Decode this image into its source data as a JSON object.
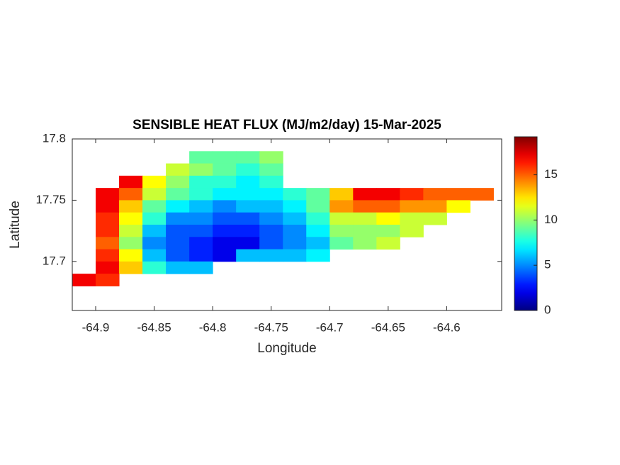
{
  "chart_data": {
    "type": "heatmap",
    "title": "SENSIBLE HEAT FLUX (MJ/m2/day) 15-Mar-2025",
    "x_label": "Longitude",
    "y_label": "Latitude",
    "xlim": [
      -64.92,
      -64.553
    ],
    "ylim": [
      17.66,
      17.8
    ],
    "xticks": [
      -64.9,
      -64.85,
      -64.8,
      -64.75,
      -64.7,
      -64.65,
      -64.6
    ],
    "yticks": [
      17.7,
      17.75,
      17.8
    ],
    "clim": [
      0,
      19.2
    ],
    "cticks": [
      0,
      5,
      10,
      15
    ],
    "colormap": "jet",
    "cell_width": 0.02,
    "cell_height": 0.01,
    "x": [
      -64.91,
      -64.89,
      -64.87,
      -64.85,
      -64.83,
      -64.81,
      -64.79,
      -64.77,
      -64.75,
      -64.73,
      -64.71,
      -64.69,
      -64.67,
      -64.65,
      -64.63,
      -64.61,
      -64.59,
      -64.57
    ],
    "y": [
      17.785,
      17.775,
      17.765,
      17.755,
      17.745,
      17.735,
      17.725,
      17.715,
      17.705,
      17.695,
      17.685
    ],
    "z": [
      [
        null,
        null,
        null,
        null,
        null,
        9,
        9,
        9,
        10,
        null,
        null,
        null,
        null,
        null,
        null,
        null,
        null,
        null
      ],
      [
        null,
        null,
        null,
        null,
        11,
        10,
        9,
        8,
        9,
        null,
        null,
        null,
        null,
        null,
        null,
        null,
        null,
        null
      ],
      [
        null,
        null,
        17,
        12,
        10,
        8,
        8,
        7,
        8,
        null,
        null,
        null,
        null,
        null,
        null,
        null,
        null,
        null
      ],
      [
        null,
        17,
        15,
        11,
        9,
        8,
        7,
        7,
        7,
        8,
        9,
        13,
        17,
        17,
        16,
        15,
        15,
        15
      ],
      [
        null,
        17,
        13,
        9,
        7,
        6,
        5,
        6,
        6,
        7,
        9,
        14,
        15,
        15,
        14,
        14,
        12,
        null
      ],
      [
        null,
        16,
        12,
        8,
        5,
        5,
        4,
        4,
        5,
        6,
        8,
        11,
        11,
        12,
        11,
        11,
        null,
        null
      ],
      [
        null,
        16,
        11,
        6,
        4,
        4,
        3,
        3,
        4,
        5,
        7,
        10,
        10,
        10,
        11,
        null,
        null,
        null
      ],
      [
        null,
        15,
        10,
        5,
        4,
        3,
        2,
        2,
        4,
        5,
        6,
        9,
        10,
        11,
        null,
        null,
        null,
        null
      ],
      [
        null,
        16,
        12,
        6,
        4,
        3,
        2,
        6,
        6,
        6,
        7,
        null,
        null,
        null,
        null,
        null,
        null,
        null
      ],
      [
        null,
        17,
        13,
        8,
        6,
        6,
        null,
        null,
        null,
        null,
        null,
        null,
        null,
        null,
        null,
        null,
        null,
        null
      ],
      [
        17,
        16,
        null,
        null,
        null,
        null,
        null,
        null,
        null,
        null,
        null,
        null,
        null,
        null,
        null,
        null,
        null,
        null
      ]
    ]
  }
}
